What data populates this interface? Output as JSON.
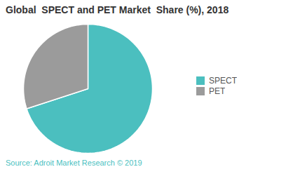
{
  "chart_data": {
    "type": "pie",
    "title": "Global  SPECT and PET Market  Share (%), 2018",
    "categories": [
      "SPECT",
      "PET"
    ],
    "values": [
      70,
      30
    ],
    "colors": [
      "#4bbfbf",
      "#9b9b9b"
    ],
    "legend": "right",
    "annotations": [
      {
        "text": "Source: Adroit Market Research © 2019",
        "color": "#4bbfbf"
      }
    ]
  }
}
